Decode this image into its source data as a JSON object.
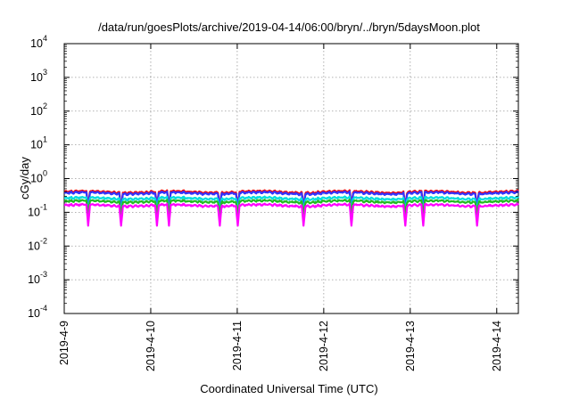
{
  "chart_data": {
    "type": "line",
    "title": "/data/run/goesPlots/archive/2019-04-14/06:00/bryn/../bryn/5daysMoon.plot",
    "xlabel": "Coordinated Universal Time (UTC)",
    "ylabel": "cGy/day",
    "y_scale": "log",
    "ylim": [
      0.0001,
      10000
    ],
    "xlim": [
      "2019-04-09 00:00",
      "2019-04-14 06:00"
    ],
    "grid": true,
    "x_tick_labels": [
      "2019-4-9",
      "2019-4-10",
      "2019-4-11",
      "2019-4-12",
      "2019-4-13",
      "2019-4-14"
    ],
    "y_ticks": [
      {
        "base": "10",
        "exp": "4"
      },
      {
        "base": "10",
        "exp": "3"
      },
      {
        "base": "10",
        "exp": "2"
      },
      {
        "base": "10",
        "exp": "1"
      },
      {
        "base": "10",
        "exp": "0"
      },
      {
        "base": "10",
        "exp": "-1"
      },
      {
        "base": "10",
        "exp": "-2"
      },
      {
        "base": "10",
        "exp": "-3"
      },
      {
        "base": "10",
        "exp": "-4"
      }
    ],
    "series": [
      {
        "color": "#ff0000",
        "level": 0.4,
        "dip_level": 0.15,
        "values_day_start": [
          0.4,
          0.38,
          0.42,
          0.4,
          0.41,
          0.39
        ]
      },
      {
        "color": "#3333ff",
        "level": 0.37,
        "dip_level": 0.14,
        "values_day_start": [
          0.37,
          0.35,
          0.39,
          0.37,
          0.38,
          0.36
        ]
      },
      {
        "color": "#00dddd",
        "level": 0.26,
        "dip_level": 0.11,
        "values_day_start": [
          0.26,
          0.25,
          0.27,
          0.26,
          0.26,
          0.25
        ]
      },
      {
        "color": "#22bb22",
        "level": 0.21,
        "dip_level": 0.09,
        "values_day_start": [
          0.21,
          0.2,
          0.22,
          0.21,
          0.21,
          0.2
        ]
      },
      {
        "color": "#ff00ff",
        "level": 0.16,
        "dip_level": 0.04,
        "values_day_start": [
          0.16,
          0.15,
          0.17,
          0.16,
          0.16,
          0.15
        ]
      }
    ]
  }
}
